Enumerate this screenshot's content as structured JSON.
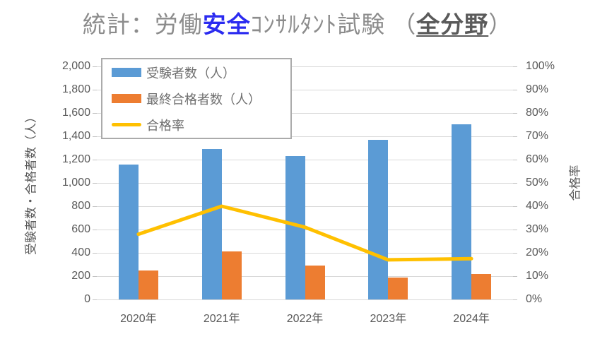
{
  "title": {
    "prefix": "統計：労働",
    "highlight": "安全",
    "middle": "ｺﾝｻﾙﾀﾝﾄ試験",
    "open_paren": "（",
    "emphasis": "全分野",
    "close_paren": "）"
  },
  "chart_data": {
    "type": "bar+line combo",
    "categories": [
      "2020年",
      "2021年",
      "2022年",
      "2023年",
      "2024年"
    ],
    "series": [
      {
        "name": "受験者数（人）",
        "type": "bar",
        "axis": "left",
        "color": "#5B9BD5",
        "values": [
          1160,
          1290,
          1230,
          1370,
          1500
        ]
      },
      {
        "name": "最終合格者数（人）",
        "type": "bar",
        "axis": "left",
        "color": "#ED7D31",
        "values": [
          250,
          410,
          290,
          190,
          220
        ]
      },
      {
        "name": "合格率",
        "type": "line",
        "axis": "right",
        "color": "#FFC000",
        "values": [
          28,
          40,
          31,
          17,
          17.5
        ]
      }
    ],
    "left_axis": {
      "title": "受験者数・合格者数（人）",
      "min": 0,
      "max": 2000,
      "step": 200
    },
    "right_axis": {
      "title": "合格率",
      "min": 0,
      "max": 100,
      "step": 10,
      "suffix": "%"
    },
    "grid": true,
    "legend_position": "top-left-inside"
  },
  "colors": {
    "bar_blue": "#5B9BD5",
    "bar_orange": "#ED7D31",
    "line_yellow": "#FFC000",
    "grid": "#D9D9D9",
    "axis_text": "#595959",
    "title_text": "#8C8C8C",
    "highlight_blue": "#2B2BF0",
    "legend_border": "#ABABAB"
  }
}
